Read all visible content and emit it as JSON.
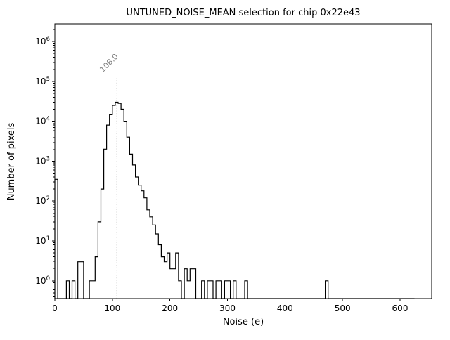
{
  "figure": {
    "background": "#ffffff"
  },
  "chart_data": {
    "type": "bar",
    "subtype": "step-histogram",
    "title": "UNTUNED_NOISE_MEAN selection for chip 0x22e43",
    "xlabel": "Noise (e)",
    "ylabel": "Number of pixels",
    "xlim": [
      0,
      655
    ],
    "ylim": [
      0.36,
      2750000
    ],
    "yscale": "log",
    "grid": false,
    "legend": null,
    "xticks": [
      0,
      100,
      200,
      300,
      400,
      500,
      600
    ],
    "yticks": [
      1,
      10,
      100,
      1000,
      10000,
      100000,
      1000000
    ],
    "line_color": "#000000",
    "bin_start": 0,
    "bin_width": 5,
    "counts": [
      350,
      0,
      0,
      0,
      1,
      0,
      1,
      0,
      3,
      3,
      0,
      0,
      1,
      1,
      4,
      30,
      200,
      2000,
      8000,
      15000,
      25000,
      30000,
      28000,
      20000,
      10000,
      4000,
      1500,
      800,
      400,
      250,
      180,
      120,
      60,
      40,
      25,
      15,
      8,
      4,
      3,
      5,
      2,
      2,
      5,
      1,
      0,
      2,
      1,
      2,
      2,
      0,
      0,
      1,
      0,
      1,
      1,
      0,
      1,
      1,
      0,
      1,
      1,
      0,
      1,
      0,
      0,
      0,
      1,
      0,
      0,
      0,
      0,
      0,
      0,
      0,
      0,
      0,
      0,
      0,
      0,
      0,
      0,
      0,
      0,
      0,
      0,
      0,
      0,
      0,
      0,
      0,
      0,
      0,
      0,
      0,
      1,
      0,
      0,
      0,
      0,
      0,
      0,
      0,
      0,
      0,
      0,
      0,
      0,
      0,
      0,
      0,
      0,
      0,
      0,
      0,
      0,
      0,
      0,
      0,
      0,
      0,
      0,
      0,
      0,
      0,
      0
    ],
    "vline": {
      "x": 108.0,
      "label": "108.0",
      "top": 120000,
      "color": "#808080"
    }
  }
}
